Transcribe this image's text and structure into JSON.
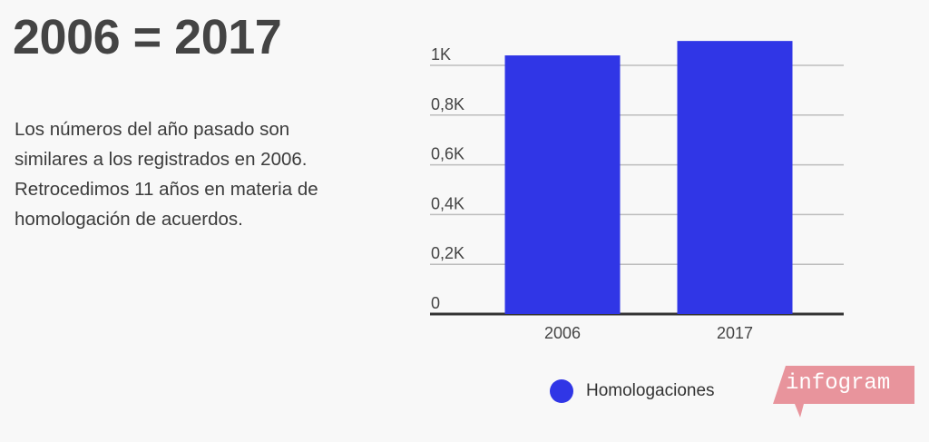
{
  "header": {
    "title": "2006 = 2017"
  },
  "description": {
    "lines": [
      "Los números del año pasado son",
      "similares a los registrados en 2006.",
      "Retrocedimos 11 años en materia de",
      "homologación de acuerdos."
    ]
  },
  "chart_data": {
    "type": "bar",
    "categories": [
      "2006",
      "2017"
    ],
    "series": [
      {
        "name": "Homologaciones",
        "values": [
          1040,
          1098
        ],
        "color": "#3036e6"
      }
    ],
    "yticks": [
      {
        "value": 0,
        "label": "0"
      },
      {
        "value": 200,
        "label": "0,2K"
      },
      {
        "value": 400,
        "label": "0,4K"
      },
      {
        "value": 600,
        "label": "0,6K"
      },
      {
        "value": 800,
        "label": "0,8K"
      },
      {
        "value": 1000,
        "label": "1K"
      }
    ],
    "ylim": [
      0,
      1000
    ],
    "grid": true,
    "legend_position": "bottom"
  },
  "legend": {
    "label": "Homologaciones",
    "color": "#3036e6"
  },
  "branding": {
    "logo_text": "infogram",
    "logo_color": "#e8949c"
  }
}
